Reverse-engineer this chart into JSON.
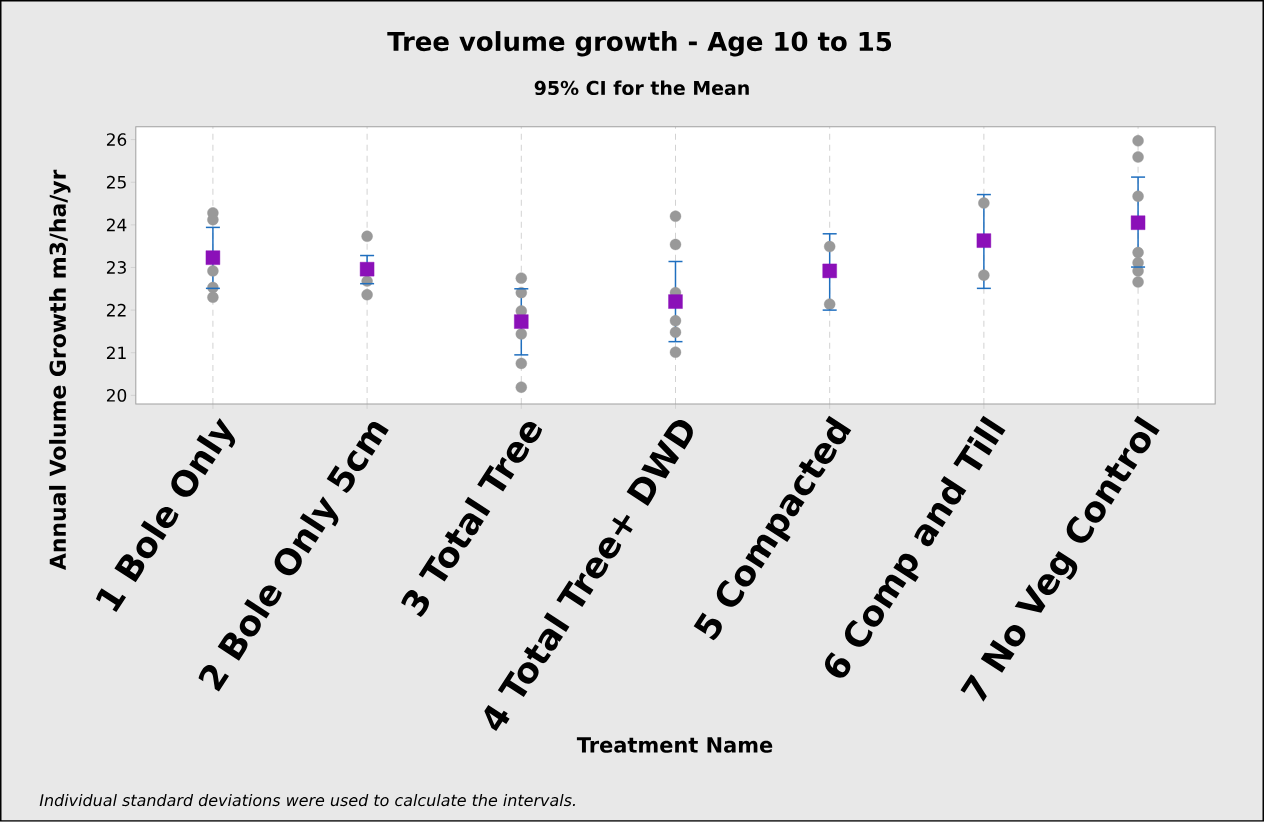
{
  "chart_data": {
    "type": "scatter",
    "title": "Tree volume growth  - Age 10 to 15",
    "subtitle": "95% CI for the Mean",
    "xlabel": "Treatment Name",
    "ylabel": "Annual Volume Growth m3/ha/yr",
    "categories": [
      "1 Bole Only",
      "2 Bole Only 5cm",
      "3 Total Tree",
      "4 Total Tree+ DWD",
      "5 Compacted",
      "6 Comp and Till",
      "7 No Veg Control"
    ],
    "series": [
      {
        "color": "#999999",
        "marker": "circle",
        "x": [
          "1 Bole Only",
          "1 Bole Only",
          "1 Bole Only",
          "1 Bole Only",
          "1 Bole Only",
          "2 Bole Only 5cm",
          "2 Bole Only 5cm",
          "2 Bole Only 5cm",
          "3 Total Tree",
          "3 Total Tree",
          "3 Total Tree",
          "3 Total Tree",
          "3 Total Tree",
          "3 Total Tree",
          "4 Total Tree+ DWD",
          "4 Total Tree+ DWD",
          "4 Total Tree+ DWD",
          "4 Total Tree+ DWD",
          "4 Total Tree+ DWD",
          "4 Total Tree+ DWD",
          "5 Compacted",
          "5 Compacted",
          "6 Comp and Till",
          "6 Comp and Till",
          "7 No Veg Control",
          "7 No Veg Control",
          "7 No Veg Control",
          "7 No Veg Control",
          "7 No Veg Control",
          "7 No Veg Control",
          "7 No Veg Control"
        ],
        "values": [
          24.28,
          24.12,
          22.92,
          22.53,
          22.3,
          23.73,
          22.68,
          22.36,
          22.75,
          22.41,
          21.98,
          21.44,
          20.75,
          20.19,
          24.2,
          23.54,
          22.41,
          21.75,
          21.48,
          21.01,
          23.49,
          22.14,
          24.51,
          22.82,
          25.97,
          25.59,
          24.67,
          23.35,
          23.11,
          22.92,
          22.66
        ]
      },
      {
        "color": "#8b10b8",
        "marker": "square",
        "values": [
          23.23,
          22.96,
          21.73,
          22.2,
          22.92,
          23.63,
          24.05
        ],
        "errors": [
          [
            22.51,
            23.94
          ],
          [
            22.62,
            23.28
          ],
          [
            20.95,
            22.5
          ],
          [
            21.26,
            23.14
          ],
          [
            22.0,
            23.79
          ],
          [
            22.51,
            24.71
          ],
          [
            23.01,
            25.12
          ]
        ]
      }
    ],
    "ylim": [
      19.8,
      26.3
    ],
    "yticks": [
      20,
      21,
      22,
      23,
      24,
      25,
      26
    ],
    "grid": "x",
    "annotations": [
      "Individual standard deviations were used to calculate the intervals."
    ]
  }
}
